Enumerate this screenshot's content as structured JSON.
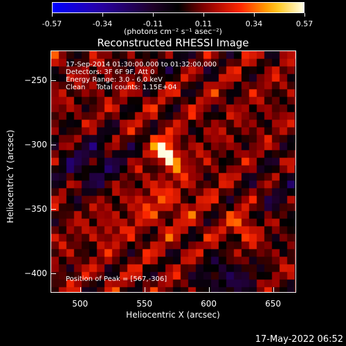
{
  "colorbar": {
    "ticks": [
      "-0.57",
      "-0.34",
      "-0.11",
      "0.11",
      "0.34",
      "0.57"
    ],
    "units_label": "(photons cm⁻² s⁻¹ asec⁻²)"
  },
  "title": "Reconstructed RHESSI Image",
  "info": {
    "line1": "17-Sep-2014 01:30:00.000 to 01:32:00.000",
    "line2": "Detectors: 3F 6F 9F, Att 0",
    "line3": "Energy Range: 3.0 - 6.0 keV",
    "line4": "Clean     Total counts: 1.15E+04",
    "peak": "Position of Peak = [567,-306]"
  },
  "timestamp": "17-May-2022 06:52",
  "chart_data": {
    "type": "heatmap",
    "title": "Reconstructed RHESSI Image",
    "xlabel": "Heliocentric X (arcsec)",
    "ylabel": "Heliocentric Y (arcsec)",
    "xlim": [
      477,
      668
    ],
    "ylim": [
      -415,
      -227
    ],
    "xticks": [
      "500",
      "550",
      "600",
      "650"
    ],
    "yticks": [
      "-250",
      "-300",
      "-350",
      "-400"
    ],
    "color_range": [
      -0.57,
      0.57
    ],
    "peak": {
      "x": 567,
      "y": -306
    }
  }
}
